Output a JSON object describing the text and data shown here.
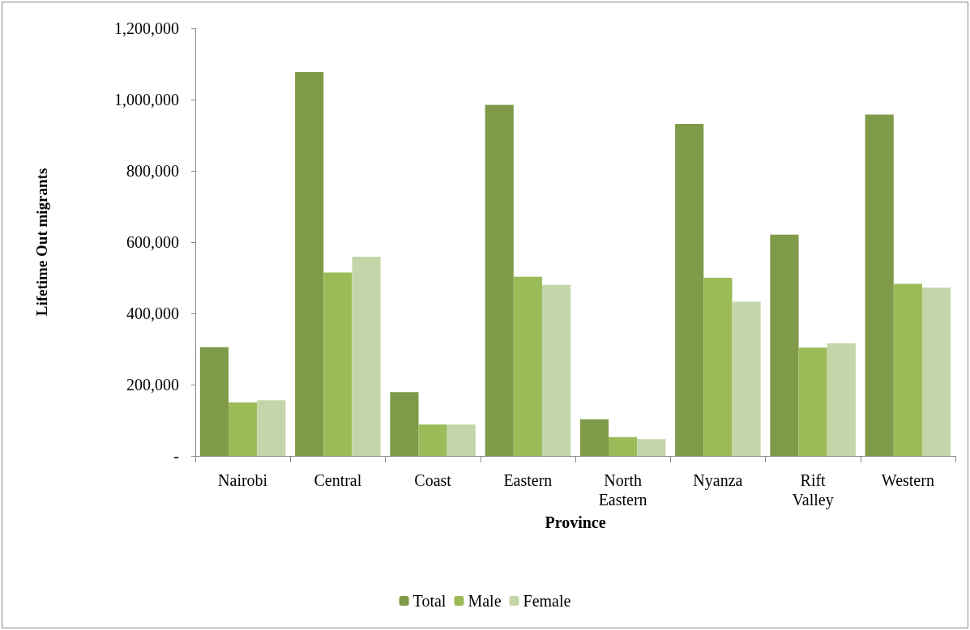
{
  "chart_data": {
    "type": "bar",
    "xlabel": "Province",
    "ylabel": "Lifetime Out migrants",
    "categories": [
      "Nairobi",
      "Central",
      "Coast",
      "Eastern",
      "North\nEastern",
      "Nyanza",
      "Rift\nValley",
      "Western"
    ],
    "series": [
      {
        "name": "Total",
        "color": "#7f9a48",
        "values": [
          305000,
          1077000,
          179000,
          985000,
          103000,
          932000,
          621000,
          958000
        ]
      },
      {
        "name": "Male",
        "color": "#9bbb59",
        "values": [
          150000,
          515000,
          88000,
          503000,
          53000,
          500000,
          304000,
          483000
        ]
      },
      {
        "name": "Female",
        "color": "#c4d6a9",
        "values": [
          156000,
          559000,
          88000,
          480000,
          47000,
          433000,
          316000,
          472000
        ]
      }
    ],
    "ylim": [
      0,
      1200000
    ],
    "yticks": [
      {
        "value": 0,
        "label": "-"
      },
      {
        "value": 200000,
        "label": "200,000"
      },
      {
        "value": 400000,
        "label": "400,000"
      },
      {
        "value": 600000,
        "label": "600,000"
      },
      {
        "value": 800000,
        "label": "800,000"
      },
      {
        "value": 1000000,
        "label": "1,000,000"
      },
      {
        "value": 1200000,
        "label": "1,200,000"
      }
    ],
    "grid": false,
    "legend": "bottom"
  }
}
